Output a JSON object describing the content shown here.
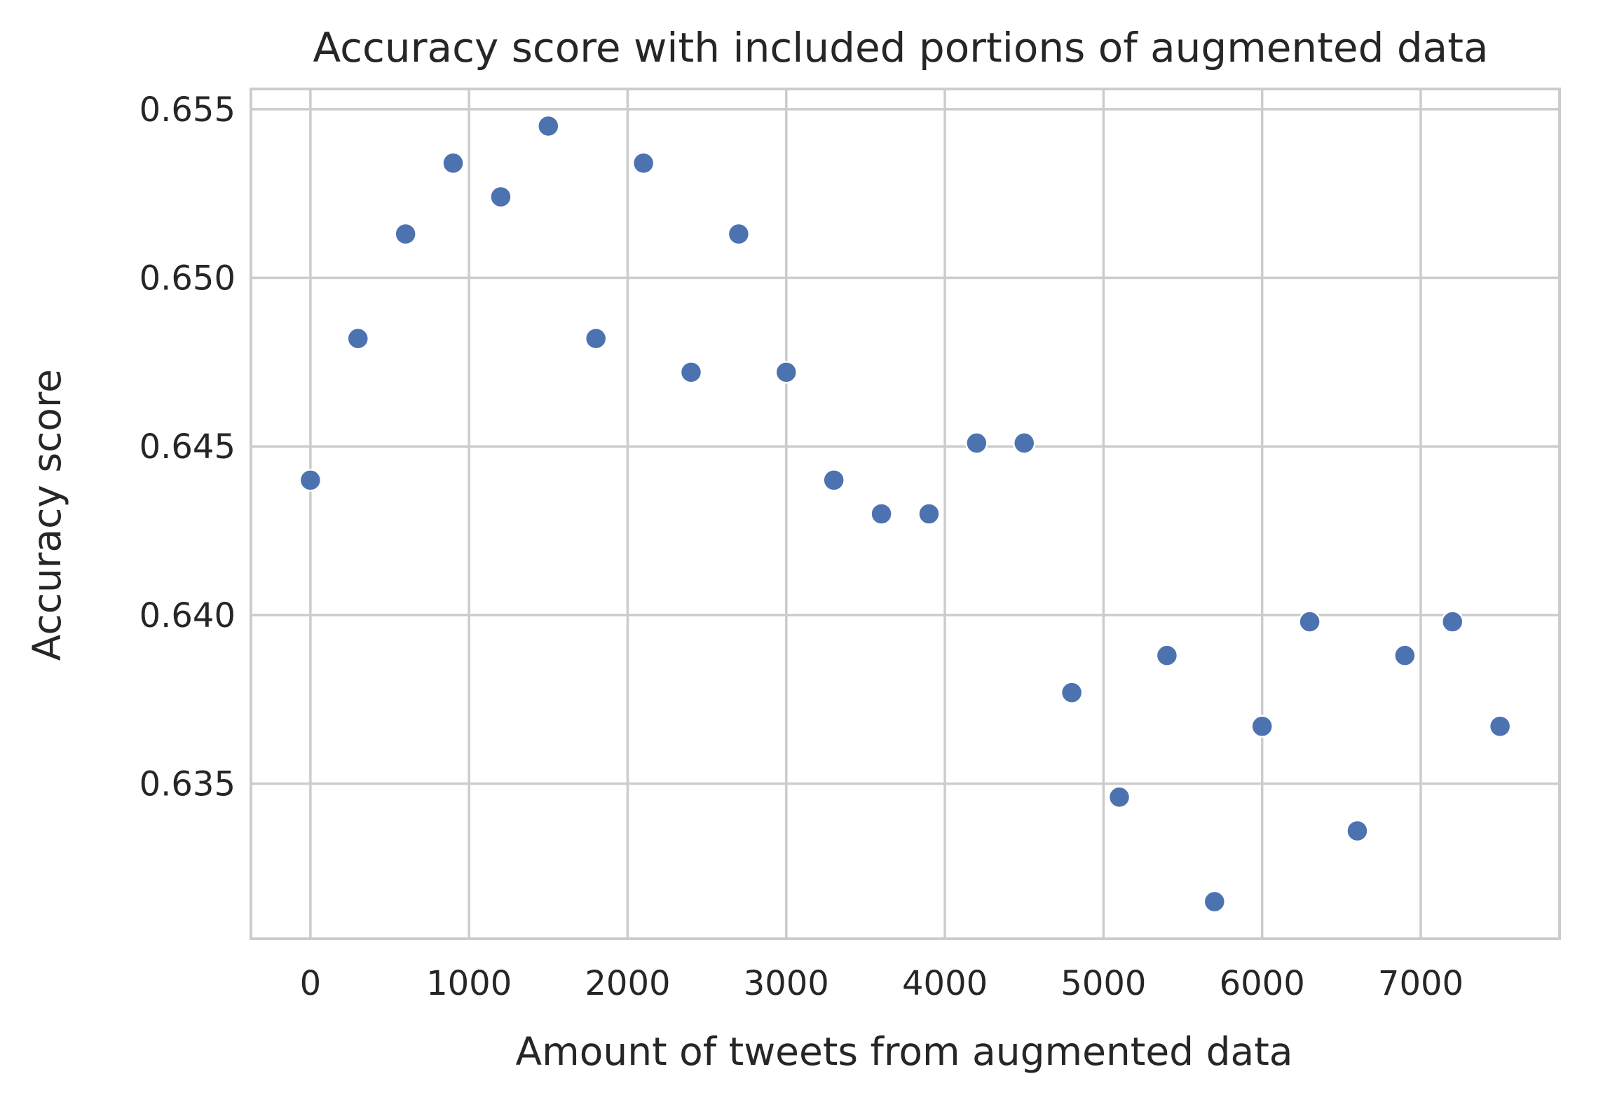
{
  "chart_data": {
    "type": "scatter",
    "title": "Accuracy score with included portions of augmented data",
    "xlabel": "Amount of tweets from augmented data",
    "ylabel": "Accuracy score",
    "xlim": [
      -375,
      7875
    ],
    "ylim": [
      0.6304,
      0.6556
    ],
    "xticks": [
      0,
      1000,
      2000,
      3000,
      4000,
      5000,
      6000,
      7000
    ],
    "yticks": [
      0.635,
      0.64,
      0.645,
      0.65,
      0.655
    ],
    "xtick_labels": [
      "0",
      "1000",
      "2000",
      "3000",
      "4000",
      "5000",
      "6000",
      "7000"
    ],
    "ytick_labels": [
      "0.635",
      "0.640",
      "0.645",
      "0.650",
      "0.655"
    ],
    "grid": true,
    "color": "#4c72b0",
    "x": [
      0,
      300,
      600,
      900,
      1200,
      1500,
      1800,
      2100,
      2400,
      2700,
      3000,
      3300,
      3600,
      3900,
      4200,
      4500,
      4800,
      5100,
      5400,
      5700,
      6000,
      6300,
      6600,
      6900,
      7200,
      7500
    ],
    "y": [
      0.644,
      0.6482,
      0.6513,
      0.6534,
      0.6524,
      0.6545,
      0.6482,
      0.6534,
      0.6472,
      0.6513,
      0.6472,
      0.644,
      0.643,
      0.643,
      0.6451,
      0.6451,
      0.6377,
      0.6346,
      0.6388,
      0.6315,
      0.6367,
      0.6398,
      0.6336,
      0.6388,
      0.6398,
      0.6367
    ]
  }
}
